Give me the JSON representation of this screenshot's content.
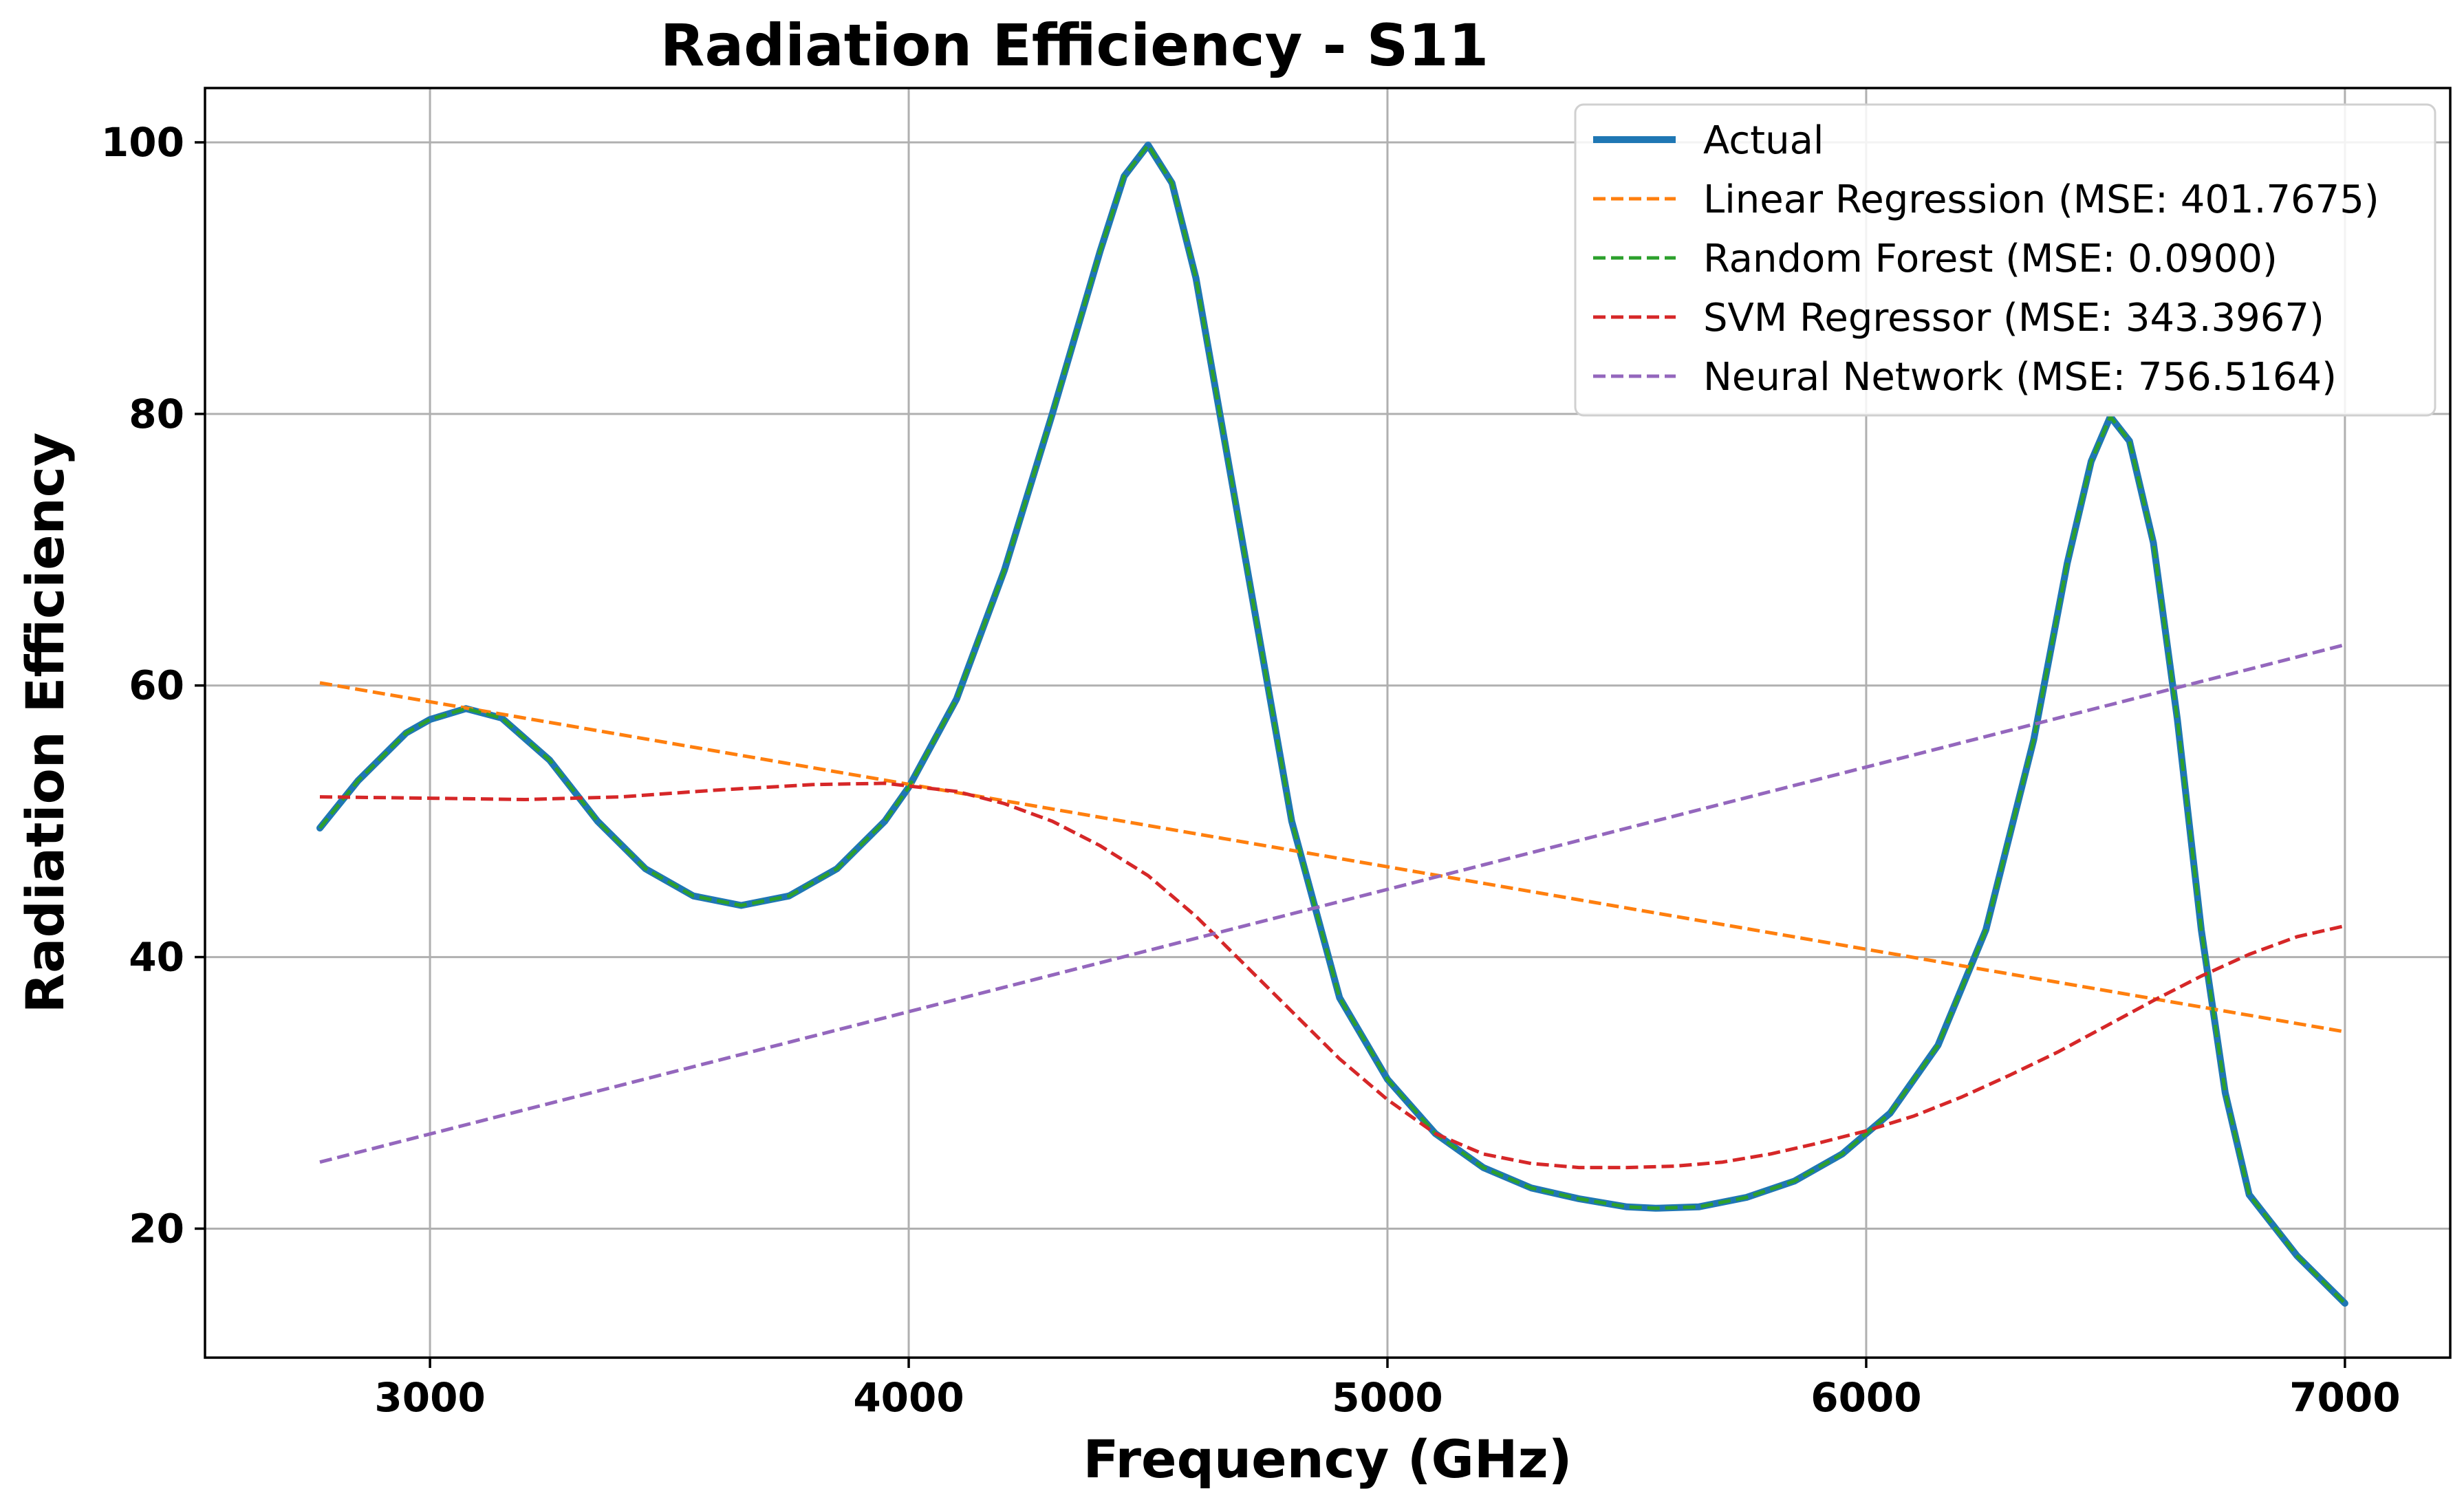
{
  "chart_data": {
    "type": "line",
    "title": "Radiation Efficiency - S11",
    "xlabel": "Frequency (GHz)",
    "ylabel": "Radiation Efficiency",
    "xlim": [
      2530,
      7220
    ],
    "ylim": [
      10.5,
      104
    ],
    "xticks": [
      3000,
      4000,
      5000,
      6000,
      7000
    ],
    "yticks": [
      20,
      40,
      60,
      80,
      100
    ],
    "grid": true,
    "legend_position": "top-right",
    "series": [
      {
        "name": "Actual",
        "color": "#1f77b4",
        "style": "solid",
        "x": [
          2770,
          2850,
          2950,
          3000,
          3075,
          3150,
          3250,
          3350,
          3450,
          3550,
          3650,
          3750,
          3850,
          3950,
          4000,
          4100,
          4200,
          4300,
          4400,
          4450,
          4500,
          4550,
          4600,
          4700,
          4800,
          4900,
          5000,
          5100,
          5200,
          5300,
          5400,
          5500,
          5560,
          5650,
          5750,
          5850,
          5950,
          6050,
          6150,
          6250,
          6350,
          6420,
          6470,
          6510,
          6550,
          6600,
          6650,
          6700,
          6750,
          6800,
          6900,
          7000
        ],
        "y": [
          49.5,
          53.0,
          56.5,
          57.5,
          58.3,
          57.6,
          54.5,
          50.0,
          46.5,
          44.5,
          43.8,
          44.5,
          46.5,
          50.0,
          52.5,
          59.0,
          68.5,
          80.0,
          92.0,
          97.5,
          99.8,
          97.0,
          90.0,
          70.0,
          50.0,
          37.0,
          31.0,
          27.0,
          24.5,
          23.0,
          22.2,
          21.6,
          21.5,
          21.6,
          22.3,
          23.5,
          25.5,
          28.5,
          33.5,
          42.0,
          56.0,
          69.0,
          76.5,
          79.8,
          78.0,
          70.5,
          57.5,
          42.0,
          30.0,
          22.5,
          18.0,
          14.5
        ]
      },
      {
        "name": "Linear Regression (MSE: 401.7675)",
        "color": "#ff7f0e",
        "style": "dashed",
        "x": [
          2770,
          7000
        ],
        "y": [
          60.2,
          34.5
        ]
      },
      {
        "name": "Random Forest (MSE: 0.0900)",
        "color": "#2ca02c",
        "style": "dashed",
        "x": [
          2770,
          2850,
          2950,
          3000,
          3075,
          3150,
          3250,
          3350,
          3450,
          3550,
          3650,
          3750,
          3850,
          3950,
          4000,
          4100,
          4200,
          4300,
          4400,
          4450,
          4500,
          4550,
          4600,
          4700,
          4800,
          4900,
          5000,
          5100,
          5200,
          5300,
          5400,
          5500,
          5560,
          5650,
          5750,
          5850,
          5950,
          6050,
          6150,
          6250,
          6350,
          6420,
          6470,
          6510,
          6550,
          6600,
          6650,
          6700,
          6750,
          6800,
          6900,
          7000
        ],
        "y": [
          49.5,
          53.0,
          56.5,
          57.5,
          58.3,
          57.6,
          54.5,
          50.0,
          46.5,
          44.5,
          43.8,
          44.5,
          46.5,
          50.0,
          52.5,
          59.0,
          68.5,
          80.0,
          92.0,
          97.5,
          99.8,
          97.0,
          90.0,
          70.0,
          50.0,
          37.0,
          31.0,
          27.0,
          24.5,
          23.0,
          22.2,
          21.6,
          21.5,
          21.6,
          22.3,
          23.5,
          25.5,
          28.5,
          33.5,
          42.0,
          56.0,
          69.0,
          76.5,
          79.8,
          78.0,
          70.5,
          57.5,
          42.0,
          30.0,
          22.5,
          18.0,
          14.5
        ]
      },
      {
        "name": "SVM Regressor (MSE: 343.3967)",
        "color": "#d62728",
        "style": "dashed",
        "x": [
          2770,
          3000,
          3200,
          3400,
          3600,
          3800,
          3950,
          4100,
          4200,
          4300,
          4400,
          4500,
          4600,
          4700,
          4800,
          4900,
          5000,
          5100,
          5200,
          5300,
          5400,
          5500,
          5600,
          5700,
          5800,
          5900,
          6000,
          6100,
          6200,
          6300,
          6400,
          6500,
          6600,
          6700,
          6800,
          6900,
          7000
        ],
        "y": [
          51.8,
          51.7,
          51.6,
          51.8,
          52.3,
          52.7,
          52.8,
          52.2,
          51.3,
          50.0,
          48.2,
          46.0,
          43.0,
          39.5,
          36.0,
          32.5,
          29.5,
          27.0,
          25.5,
          24.8,
          24.5,
          24.5,
          24.6,
          24.9,
          25.5,
          26.3,
          27.2,
          28.3,
          29.7,
          31.3,
          33.0,
          34.9,
          36.8,
          38.6,
          40.2,
          41.5,
          42.3
        ]
      },
      {
        "name": "Neural Network (MSE: 756.5164)",
        "color": "#9467bd",
        "style": "dashed",
        "x": [
          2770,
          7000
        ],
        "y": [
          24.9,
          63.0
        ]
      }
    ]
  }
}
